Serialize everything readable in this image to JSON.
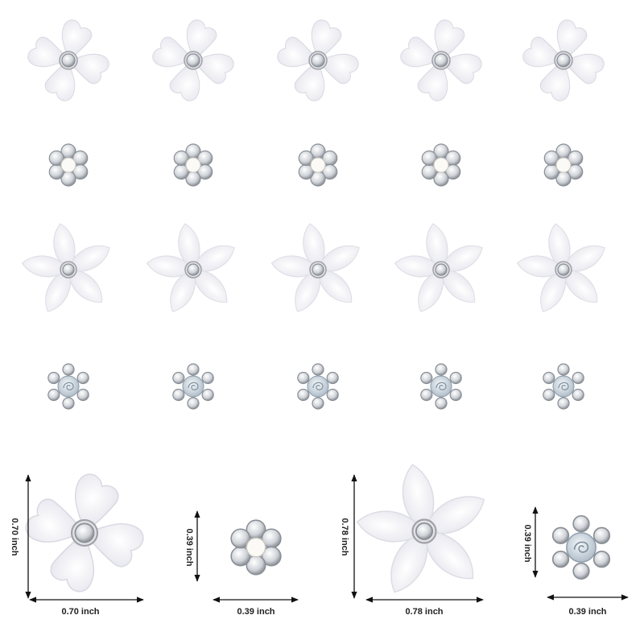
{
  "dimensions": [
    {
      "height": "0.70 inch",
      "width": "0.70 inch"
    },
    {
      "height": "0.39 inch",
      "width": "0.39 inch"
    },
    {
      "height": "0.78 inch",
      "width": "0.78 inch"
    },
    {
      "height": "0.39 inch",
      "width": "0.39 inch"
    }
  ]
}
